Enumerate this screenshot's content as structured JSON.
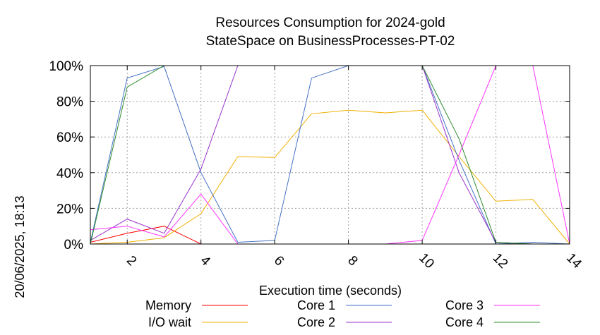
{
  "chart_data": {
    "type": "line",
    "title": "Resources Consumption for 2024-gold",
    "subtitle": "StateSpace on BusinessProcesses-PT-02",
    "xlabel": "Execution time (seconds)",
    "ylabel": "",
    "side_label": "20/06/2025, 18:13",
    "xlim": [
      1,
      14
    ],
    "ylim": [
      0,
      100
    ],
    "x_ticks": [
      2,
      4,
      6,
      8,
      10,
      12,
      14
    ],
    "x_tick_labels": [
      "2",
      "4",
      "6",
      "8",
      "10",
      "12",
      "14"
    ],
    "y_ticks": [
      0,
      20,
      40,
      60,
      80,
      100
    ],
    "y_tick_labels": [
      "0%",
      "20%",
      "40%",
      "60%",
      "80%",
      "100%"
    ],
    "grid": true,
    "legend_position": "bottom",
    "x": [
      1,
      2,
      3,
      4,
      5,
      6,
      7,
      8,
      9,
      10,
      11,
      12,
      13,
      14
    ],
    "series": [
      {
        "name": "Memory",
        "color": "#ff0000",
        "values": [
          1,
          6,
          10,
          0,
          0,
          0,
          0,
          0,
          0,
          0,
          0,
          0,
          0,
          0
        ]
      },
      {
        "name": "I/O wait",
        "color": "#f0b000",
        "values": [
          0,
          1,
          3.5,
          17,
          49,
          48.5,
          73,
          75,
          73.5,
          75,
          49,
          24,
          25,
          0
        ]
      },
      {
        "name": "Core 1",
        "color": "#4472c4",
        "values": [
          1,
          93,
          99.5,
          40,
          1,
          2,
          93,
          100,
          100,
          100,
          47,
          0,
          1,
          0
        ]
      },
      {
        "name": "Core 2",
        "color": "#9933cc",
        "values": [
          2,
          14,
          6,
          42,
          100,
          100,
          100,
          100,
          100,
          100,
          40,
          1,
          0,
          0
        ]
      },
      {
        "name": "Core 3",
        "color": "#ff33ff",
        "values": [
          8,
          10,
          4,
          28,
          0,
          0,
          0,
          0,
          0,
          2,
          50,
          100,
          100,
          0
        ]
      },
      {
        "name": "Core 4",
        "color": "#2e8b2e",
        "values": [
          0,
          88,
          100,
          100,
          100,
          100,
          100,
          100,
          100,
          100,
          59,
          1,
          0,
          0
        ]
      }
    ]
  }
}
